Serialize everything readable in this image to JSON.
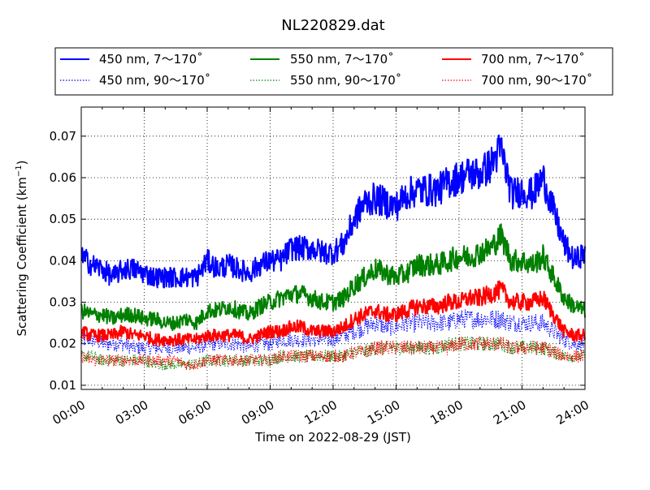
{
  "chart_data": {
    "type": "line",
    "title": "NL220829.dat",
    "xlabel": "Time on 2022-08-29 (JST)",
    "ylabel": "Scattering Coefficient (km",
    "ylabel_sup": "−1",
    "ylabel_end": ")",
    "xlim": [
      "2022-08-29 00:00",
      "2022-08-30 00:00"
    ],
    "ylim": [
      0.009,
      0.077
    ],
    "x_tick_labels": [
      "00:00",
      "03:00",
      "06:00",
      "09:00",
      "12:00",
      "15:00",
      "18:00",
      "21:00",
      "24:00"
    ],
    "y_tick_values": [
      0.01,
      0.02,
      0.03,
      0.04,
      0.05,
      0.06,
      0.07
    ],
    "y_tick_labels": [
      "0.01",
      "0.02",
      "0.03",
      "0.04",
      "0.05",
      "0.06",
      "0.07"
    ],
    "grid": true,
    "legend_position": "top",
    "x": [
      "00:00",
      "00:30",
      "01:00",
      "01:30",
      "02:00",
      "02:30",
      "03:00",
      "03:30",
      "04:00",
      "04:30",
      "05:00",
      "05:30",
      "06:00",
      "06:30",
      "07:00",
      "07:30",
      "08:00",
      "08:30",
      "09:00",
      "09:30",
      "10:00",
      "10:30",
      "11:00",
      "11:30",
      "12:00",
      "12:30",
      "13:00",
      "13:30",
      "14:00",
      "14:30",
      "15:00",
      "15:30",
      "16:00",
      "16:30",
      "17:00",
      "17:30",
      "18:00",
      "18:30",
      "19:00",
      "19:30",
      "20:00",
      "20:30",
      "21:00",
      "21:30",
      "22:00",
      "22:30",
      "23:00",
      "23:30",
      "24:00"
    ],
    "series": [
      {
        "name": "450 nm, 7～170˚",
        "color": "#0000ff",
        "style": "solid",
        "values": [
          0.041,
          0.039,
          0.038,
          0.036,
          0.038,
          0.038,
          0.037,
          0.036,
          0.036,
          0.036,
          0.036,
          0.036,
          0.04,
          0.038,
          0.039,
          0.038,
          0.037,
          0.039,
          0.04,
          0.04,
          0.043,
          0.043,
          0.043,
          0.042,
          0.042,
          0.044,
          0.05,
          0.054,
          0.055,
          0.054,
          0.053,
          0.056,
          0.057,
          0.057,
          0.057,
          0.059,
          0.06,
          0.061,
          0.061,
          0.063,
          0.067,
          0.056,
          0.057,
          0.056,
          0.06,
          0.052,
          0.044,
          0.04,
          0.042
        ]
      },
      {
        "name": "450 nm, 90～170˚",
        "color": "#0000ff",
        "style": "dotted",
        "values": [
          0.021,
          0.021,
          0.02,
          0.02,
          0.02,
          0.019,
          0.019,
          0.019,
          0.019,
          0.019,
          0.019,
          0.019,
          0.02,
          0.02,
          0.02,
          0.02,
          0.019,
          0.02,
          0.02,
          0.021,
          0.021,
          0.021,
          0.021,
          0.021,
          0.021,
          0.022,
          0.023,
          0.024,
          0.025,
          0.024,
          0.024,
          0.025,
          0.025,
          0.025,
          0.025,
          0.025,
          0.026,
          0.026,
          0.026,
          0.026,
          0.026,
          0.025,
          0.025,
          0.025,
          0.025,
          0.023,
          0.021,
          0.02,
          0.02
        ]
      },
      {
        "name": "550 nm, 7～170˚",
        "color": "#008000",
        "style": "solid",
        "values": [
          0.028,
          0.027,
          0.027,
          0.026,
          0.027,
          0.027,
          0.026,
          0.026,
          0.025,
          0.025,
          0.026,
          0.025,
          0.028,
          0.028,
          0.029,
          0.028,
          0.027,
          0.029,
          0.03,
          0.031,
          0.032,
          0.032,
          0.031,
          0.03,
          0.03,
          0.031,
          0.034,
          0.036,
          0.038,
          0.037,
          0.036,
          0.037,
          0.039,
          0.039,
          0.039,
          0.04,
          0.041,
          0.041,
          0.042,
          0.043,
          0.046,
          0.04,
          0.04,
          0.039,
          0.041,
          0.036,
          0.031,
          0.029,
          0.028
        ]
      },
      {
        "name": "550 nm, 90～170˚",
        "color": "#008000",
        "style": "dotted",
        "values": [
          0.017,
          0.017,
          0.016,
          0.016,
          0.016,
          0.016,
          0.016,
          0.015,
          0.015,
          0.015,
          0.015,
          0.015,
          0.016,
          0.016,
          0.016,
          0.016,
          0.016,
          0.016,
          0.016,
          0.017,
          0.017,
          0.017,
          0.017,
          0.017,
          0.017,
          0.017,
          0.018,
          0.018,
          0.019,
          0.019,
          0.019,
          0.019,
          0.019,
          0.019,
          0.019,
          0.02,
          0.02,
          0.02,
          0.02,
          0.02,
          0.02,
          0.019,
          0.019,
          0.019,
          0.019,
          0.018,
          0.017,
          0.017,
          0.017
        ]
      },
      {
        "name": "700 nm, 7～170˚",
        "color": "#ff0000",
        "style": "solid",
        "values": [
          0.023,
          0.022,
          0.022,
          0.022,
          0.023,
          0.022,
          0.022,
          0.021,
          0.021,
          0.021,
          0.021,
          0.021,
          0.022,
          0.022,
          0.022,
          0.022,
          0.021,
          0.022,
          0.023,
          0.023,
          0.024,
          0.024,
          0.023,
          0.023,
          0.023,
          0.024,
          0.026,
          0.027,
          0.028,
          0.027,
          0.027,
          0.028,
          0.029,
          0.029,
          0.029,
          0.03,
          0.03,
          0.031,
          0.031,
          0.032,
          0.033,
          0.03,
          0.03,
          0.03,
          0.031,
          0.027,
          0.023,
          0.022,
          0.022
        ]
      },
      {
        "name": "700 nm, 90～170˚",
        "color": "#ff0000",
        "style": "dotted",
        "values": [
          0.017,
          0.016,
          0.016,
          0.016,
          0.016,
          0.016,
          0.016,
          0.016,
          0.016,
          0.016,
          0.015,
          0.015,
          0.016,
          0.016,
          0.016,
          0.016,
          0.016,
          0.016,
          0.016,
          0.017,
          0.017,
          0.017,
          0.017,
          0.017,
          0.017,
          0.017,
          0.018,
          0.018,
          0.019,
          0.019,
          0.019,
          0.019,
          0.019,
          0.019,
          0.019,
          0.019,
          0.02,
          0.02,
          0.02,
          0.02,
          0.02,
          0.019,
          0.019,
          0.019,
          0.019,
          0.018,
          0.017,
          0.017,
          0.017
        ]
      }
    ]
  }
}
